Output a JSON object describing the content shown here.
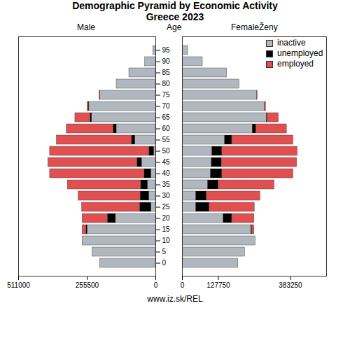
{
  "chart_data": {
    "type": "bar",
    "orientation": "horizontal",
    "stacked": true,
    "title": "Demographic Pyramid by Economic Activity",
    "subtitle": "Greece 2023",
    "y_label": "Age",
    "caption": "www.iz.sk/REL",
    "legend": "top-right",
    "categories": [
      0,
      5,
      10,
      15,
      20,
      25,
      30,
      35,
      40,
      45,
      50,
      55,
      60,
      65,
      70,
      75,
      80,
      85,
      90,
      95
    ],
    "panels": [
      {
        "label": "Male",
        "xlim": [
          0,
          511000
        ],
        "xticks": [
          511000,
          255500,
          0
        ],
        "series": [
          {
            "name": "inactive",
            "color": "#b0b7bf",
            "values": [
              208000,
              236000,
              273000,
              255000,
              149000,
              17000,
              25000,
              30000,
              17000,
              52000,
              7000,
              77000,
              146000,
              238000,
              248000,
              208000,
              146000,
              99000,
              40000,
              10000
            ]
          },
          {
            "name": "unemployed",
            "color": "#000000",
            "values": [
              0,
              0,
              0,
              4000,
              30000,
              42000,
              32000,
              25000,
              25000,
              17000,
              17000,
              12000,
              12000,
              5000,
              2000,
              0,
              0,
              0,
              0,
              0
            ]
          },
          {
            "name": "employed",
            "color": "#e05050",
            "values": [
              0,
              0,
              0,
              14000,
              94000,
              216000,
              231000,
              273000,
              352000,
              332000,
              370000,
              280000,
              174000,
              57000,
              5000,
              2000,
              0,
              0,
              0,
              0
            ]
          }
        ]
      },
      {
        "label": "FemaleŽeny",
        "xlim": [
          0,
          511000
        ],
        "xticks": [
          0,
          127750,
          383250
        ],
        "series": [
          {
            "name": "inactive",
            "color": "#b0b7bf",
            "values": [
              198000,
              222000,
              259000,
              244000,
              146000,
              49000,
              49000,
              91000,
              101000,
              104000,
              106000,
              151000,
              249000,
              299000,
              291000,
              264000,
              202000,
              158000,
              72000,
              20000
            ]
          },
          {
            "name": "unemployed",
            "color": "#000000",
            "values": [
              0,
              0,
              0,
              3000,
              30000,
              47000,
              37000,
              37000,
              40000,
              35000,
              35000,
              25000,
              12000,
              2000,
              0,
              0,
              0,
              0,
              0,
              0
            ]
          },
          {
            "name": "employed",
            "color": "#e05050",
            "values": [
              0,
              0,
              0,
              8000,
              79000,
              160000,
              190000,
              198000,
              252000,
              267000,
              267000,
              217000,
              109000,
              40000,
              5000,
              2000,
              0,
              0,
              0,
              0
            ]
          }
        ]
      }
    ]
  }
}
